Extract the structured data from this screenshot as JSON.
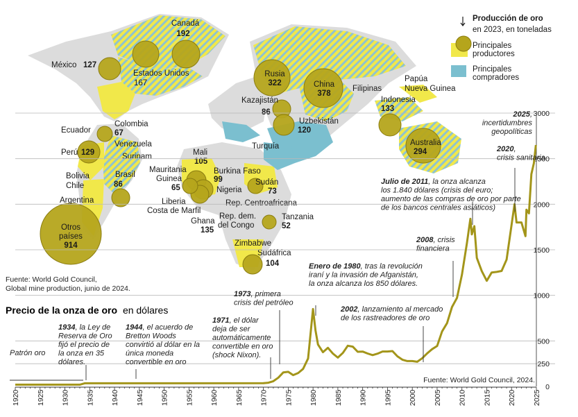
{
  "map": {
    "legend": {
      "title": "Producción de oro",
      "subtitle": "en 2023, en toneladas",
      "producers_line1": "Principales",
      "producers_line2": "productores",
      "buyers_line1": "Principales",
      "buyers_line2": "compradores"
    },
    "source_line1": "Fuente: World Gold Council,",
    "source_line2": "Global mine production, junio de 2024.",
    "producers": [
      {
        "name": "Canadá",
        "value": "192"
      },
      {
        "name": "Estados Unidos",
        "value": "167"
      },
      {
        "name": "México",
        "value": "127"
      },
      {
        "name": "Rusia",
        "value": "322"
      },
      {
        "name": "China",
        "value": "378"
      },
      {
        "name": "Kazajistán",
        "value": "86"
      },
      {
        "name": "Uzbekistán",
        "value": "120"
      },
      {
        "name": "Indonesia",
        "value": "133"
      },
      {
        "name": "Australia",
        "value": "294"
      },
      {
        "name": "Colombia",
        "value": "67"
      },
      {
        "name": "Perú",
        "value": "129"
      },
      {
        "name": "Brasil",
        "value": "86"
      },
      {
        "name": "Otros países",
        "value": "914"
      },
      {
        "name": "Mali",
        "value": "105"
      },
      {
        "name": "Burkina Faso",
        "value": "99"
      },
      {
        "name": "Sudán",
        "value": "73"
      },
      {
        "name": "Ghana",
        "value": "135"
      },
      {
        "name": "Tanzania",
        "value": "52"
      },
      {
        "name": "Sudáfrica",
        "value": "104"
      },
      {
        "name": "Mauritania Guinea",
        "value": "65"
      }
    ],
    "labels": {
      "ecuador": "Ecuador",
      "venezuela": "Venezuela",
      "surinam": "Surinam",
      "bolivia": "Bolivia",
      "chile": "Chile",
      "argentina": "Argentina",
      "mauritania": "Mauritania",
      "guinea": "Guinea",
      "nigeria": "Nigeria",
      "liberia": "Liberia",
      "costa_marfil": "Costa de Marfil",
      "rca": "Rep. Centroafricana",
      "rdc1": "Rep. dem.",
      "rdc2": "del Congo",
      "zimbabwe": "Zimbabwe",
      "turquia": "Turquía",
      "filipinas": "Filipinas",
      "papua1": "Papúa",
      "papua2": "Nueva Guinea",
      "otros1": "Otros",
      "otros2": "países"
    }
  },
  "chart_data": {
    "type": "line",
    "title": "Precio de la onza de oro",
    "title_suffix": "en dólares",
    "source": "Fuente: World Gold Council, 2024.",
    "xlim": [
      1920,
      2025
    ],
    "ylim": [
      0,
      3000
    ],
    "x_ticks": [
      1920,
      1925,
      1930,
      1935,
      1940,
      1945,
      1950,
      1955,
      1960,
      1965,
      1970,
      1975,
      1980,
      1985,
      1990,
      1995,
      2000,
      2005,
      2010,
      2015,
      2020,
      2025
    ],
    "y_ticks": [
      0,
      250,
      500,
      1000,
      1500,
      2000,
      2500,
      3000
    ],
    "series": [
      {
        "x": [
          1920,
          1933,
          1934,
          1970,
          1971,
          1972,
          1973,
          1974,
          1975,
          1976,
          1977,
          1978,
          1979,
          1980,
          1980.5,
          1981,
          1982,
          1983,
          1984,
          1985,
          1986,
          1987,
          1988,
          1989,
          1990,
          1991,
          1992,
          1993,
          1994,
          1995,
          1996,
          1997,
          1998,
          1999,
          2000,
          2001,
          2002,
          2003,
          2004,
          2005,
          2006,
          2007,
          2008,
          2009,
          2010,
          2011,
          2011.7,
          2012,
          2012.5,
          2013,
          2014,
          2015,
          2016,
          2017,
          2018,
          2019,
          2020,
          2020.6,
          2021,
          2022,
          2022.8,
          2023,
          2023.5,
          2024,
          2024.5,
          2024.9
        ],
        "y": [
          20,
          20,
          35,
          36,
          41,
          58,
          97,
          154,
          161,
          125,
          148,
          193,
          307,
          850,
          615,
          460,
          376,
          424,
          361,
          317,
          368,
          447,
          437,
          381,
          383,
          362,
          344,
          360,
          384,
          384,
          388,
          331,
          294,
          279,
          279,
          271,
          310,
          363,
          410,
          445,
          604,
          695,
          872,
          972,
          1225,
          1572,
          1840,
          1669,
          1760,
          1411,
          1266,
          1160,
          1251,
          1257,
          1268,
          1393,
          1770,
          2000,
          1800,
          1800,
          1650,
          1940,
          1900,
          2330,
          2450,
          2650
        ]
      }
    ],
    "annotations": [
      {
        "bold": "",
        "text": [
          "Patrón oro"
        ]
      },
      {
        "bold": "1934",
        "text": [
          "1934, la Ley de",
          "Reserva de Oro",
          "fijó el precio de",
          "la onza en 35",
          "dólares."
        ]
      },
      {
        "bold": "1944",
        "text": [
          "1944, el acuerdo de",
          "Bretton Woods",
          "convirtió al dólar en la",
          "única moneda",
          "convertible en oro"
        ]
      },
      {
        "bold": "1971",
        "text": [
          "1971, el dólar",
          "deja de ser",
          "automáticamente",
          "convertible en oro",
          "(shock Nixon)."
        ]
      },
      {
        "bold": "1973",
        "text": [
          "1973, primera",
          "crisis del petróleo"
        ]
      },
      {
        "bold": "Enero de 1980",
        "text": [
          "Enero de 1980, tras la revolución",
          "iraní y la invasión de Afganistán,",
          "la onza alcanza los 850 dólares."
        ]
      },
      {
        "bold": "2002",
        "text": [
          "2002, lanzamiento al mercado",
          "de los rastreadores de oro"
        ]
      },
      {
        "bold": "2008",
        "text": [
          "2008, crisis",
          "financiera"
        ]
      },
      {
        "bold": "Julio de 2011",
        "text": [
          "Julio de 2011, la onza alcanza",
          "los 1.840 dólares (crisis del euro;",
          "aumento de las compras de oro por parte",
          "de los bancos centrales asiáticos)"
        ]
      },
      {
        "bold": "2020",
        "text": [
          "2020,",
          "crisis sanitaria"
        ]
      },
      {
        "bold": "2025",
        "text": [
          "2025,",
          "incertidumbres",
          "geopolíticas"
        ]
      }
    ],
    "colors": {
      "line": "#a3951a",
      "bubble": "#b5a51c",
      "producer": "#f1e84a",
      "buyer": "#7bbfcf",
      "land": "#dcdcdc"
    }
  }
}
